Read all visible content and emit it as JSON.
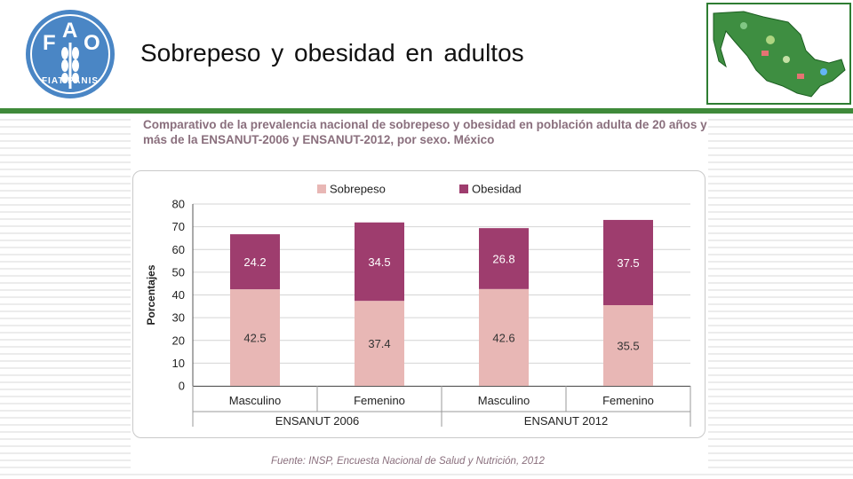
{
  "slide": {
    "title": "Sobrepeso  y obesidad  en adultos"
  },
  "logo": {
    "letters": [
      "F",
      "A",
      "O"
    ],
    "motto": "FIAT PANIS"
  },
  "colors": {
    "sobrepeso": "#e8b7b5",
    "obesidad": "#9e3d6e",
    "accent_green": "#3f8a3a",
    "fao_blue": "#4a86c5"
  },
  "chart_data": {
    "type": "bar",
    "stacked": true,
    "title": "Comparativo de la prevalencia nacional de sobrepeso y obesidad en población adulta de 20 años y más de la ENSANUT-2006 y ENSANUT-2012, por sexo. México",
    "ylabel": "Porcentajes",
    "ylim": [
      0,
      80
    ],
    "yticks": [
      0,
      10,
      20,
      30,
      40,
      50,
      60,
      70,
      80
    ],
    "categories": [
      "Masculino",
      "Femenino",
      "Masculino",
      "Femenino"
    ],
    "groups": [
      {
        "label": "ENSANUT 2006",
        "span": [
          0,
          1
        ]
      },
      {
        "label": "ENSANUT 2012",
        "span": [
          2,
          3
        ]
      }
    ],
    "series": [
      {
        "name": "Sobrepeso",
        "values": [
          42.5,
          37.4,
          42.6,
          35.5
        ]
      },
      {
        "name": "Obesidad",
        "values": [
          24.2,
          34.5,
          26.8,
          37.5
        ]
      }
    ],
    "legend_position": "top",
    "grid": true,
    "source": "Fuente: INSP, Encuesta Nacional de Salud y Nutrición, 2012"
  }
}
